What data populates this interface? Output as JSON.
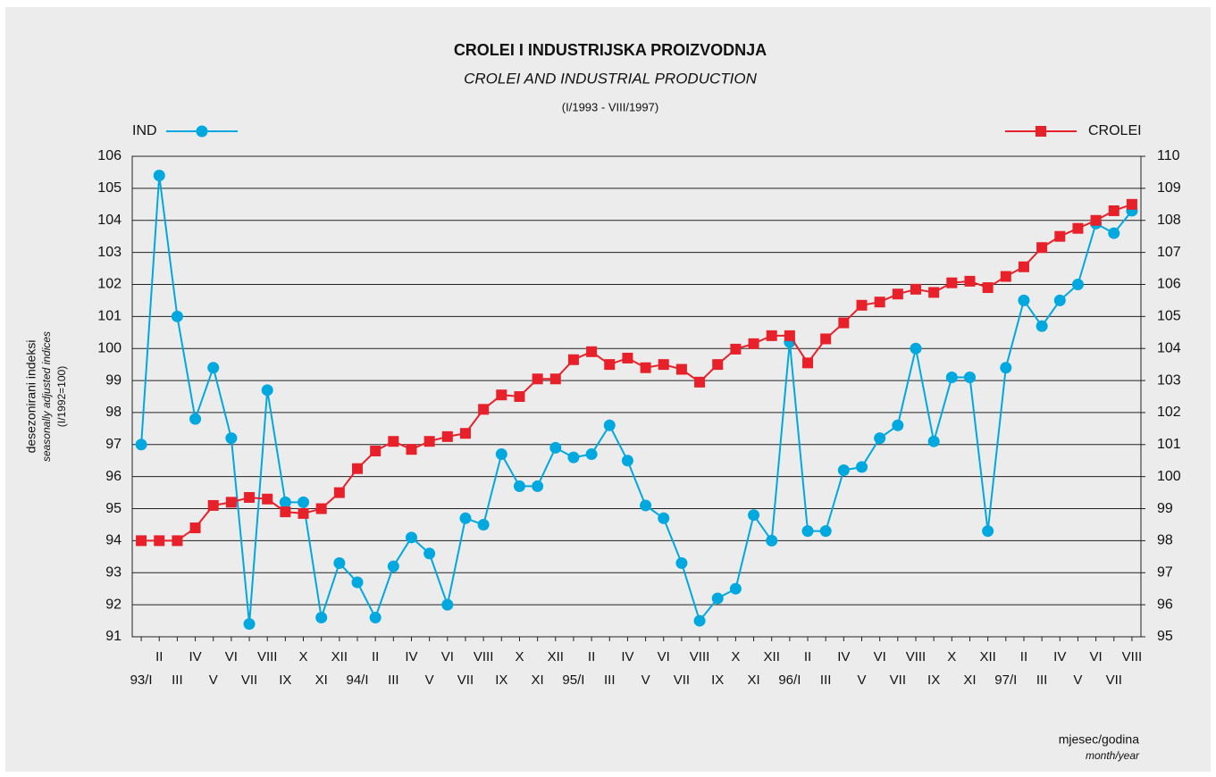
{
  "chart_data": {
    "type": "line",
    "title": "CROLEI I INDUSTRIJSKA PROIZVODNJA",
    "subtitle": "CROLEI AND INDUSTRIAL PRODUCTION",
    "period": "(I/1993 - VIII/1997)",
    "y_label": [
      "desezonirani indeksi",
      "seasonally adjusted indices",
      "(I/1992=100)"
    ],
    "x_label": [
      "mjesec/godina",
      "month/year"
    ],
    "categories": [
      "93/I",
      "II",
      "III",
      "IV",
      "V",
      "VI",
      "VII",
      "VIII",
      "IX",
      "X",
      "XI",
      "XII",
      "94/I",
      "II",
      "III",
      "IV",
      "V",
      "VI",
      "VII",
      "VIII",
      "IX",
      "X",
      "XI",
      "XII",
      "95/I",
      "II",
      "III",
      "IV",
      "V",
      "VI",
      "VII",
      "VIII",
      "IX",
      "X",
      "XI",
      "XII",
      "96/I",
      "II",
      "III",
      "IV",
      "V",
      "VI",
      "VII",
      "VIII",
      "IX",
      "X",
      "XI",
      "XII",
      "97/I",
      "II",
      "III",
      "IV",
      "V",
      "VI",
      "VII",
      "VIII"
    ],
    "series": [
      {
        "name": "IND",
        "color": "#00a8e0",
        "marker": "circle",
        "axis": "y",
        "values": [
          97.0,
          105.4,
          101.0,
          97.8,
          99.4,
          97.2,
          91.4,
          98.7,
          95.2,
          95.2,
          91.6,
          93.3,
          92.7,
          91.6,
          93.2,
          94.1,
          93.6,
          92.0,
          94.7,
          94.5,
          96.7,
          95.7,
          95.7,
          96.9,
          96.6,
          96.7,
          97.6,
          96.5,
          95.1,
          94.7,
          93.3,
          91.5,
          92.2,
          92.5,
          94.8,
          94.0,
          100.2,
          94.3,
          94.3,
          96.2,
          96.3,
          97.2,
          97.6,
          100.0,
          97.1,
          99.1,
          99.1,
          94.3,
          99.4,
          101.5,
          100.7,
          101.5,
          102.0,
          103.9,
          103.6,
          104.3
        ]
      },
      {
        "name": "CROLEI",
        "color": "#e8202a",
        "marker": "square",
        "axis": "y2",
        "values": [
          98.0,
          98.0,
          98.0,
          98.4,
          99.1,
          99.2,
          99.35,
          99.3,
          98.9,
          98.85,
          99.0,
          99.5,
          100.25,
          100.8,
          101.1,
          100.85,
          101.1,
          101.25,
          101.35,
          102.1,
          102.55,
          102.5,
          103.05,
          103.05,
          103.65,
          103.9,
          103.5,
          103.7,
          103.4,
          103.5,
          103.35,
          102.95,
          103.5,
          103.98,
          104.15,
          104.4,
          104.4,
          103.55,
          104.3,
          104.8,
          105.35,
          105.45,
          105.7,
          105.85,
          105.75,
          106.05,
          106.1,
          105.9,
          106.25,
          106.55,
          107.15,
          107.5,
          107.75,
          108.0,
          108.3,
          108.5
        ]
      }
    ],
    "ylim": [
      91,
      106
    ],
    "yticks": [
      91,
      92,
      93,
      94,
      95,
      96,
      97,
      98,
      99,
      100,
      101,
      102,
      103,
      104,
      105,
      106
    ],
    "y2lim": [
      95,
      110
    ],
    "y2ticks": [
      95,
      96,
      97,
      98,
      99,
      100,
      101,
      102,
      103,
      104,
      105,
      106,
      107,
      108,
      109,
      110
    ],
    "grid": true
  }
}
